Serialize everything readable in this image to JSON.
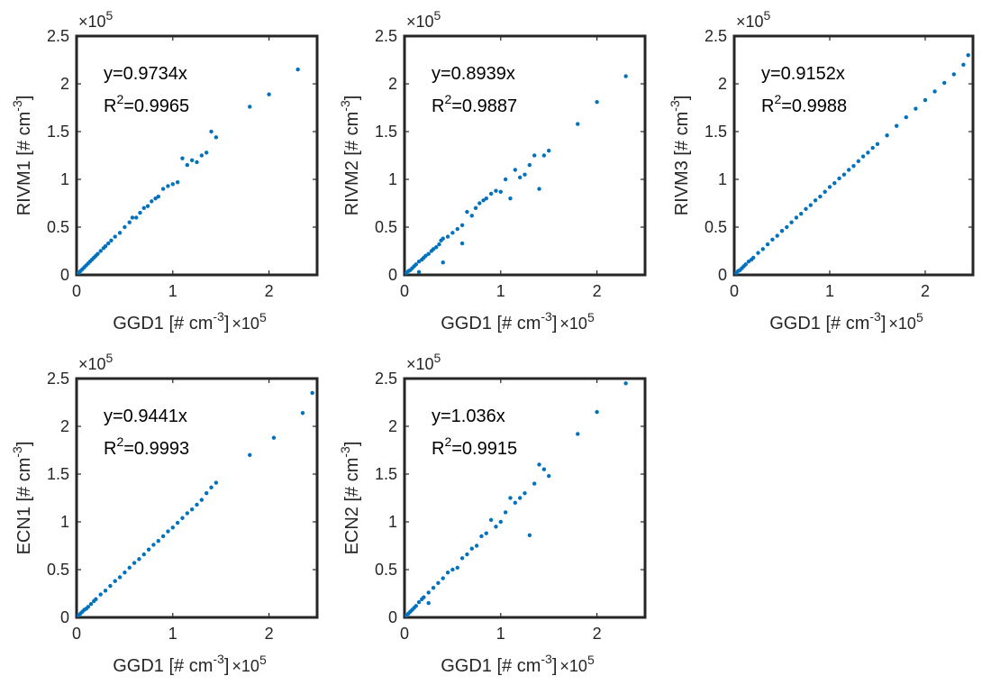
{
  "chart_data": [
    {
      "type": "scatter",
      "xlabel": "GGD1 [# cm-3]",
      "ylabel": "RIVM1 [# cm-3]",
      "x_exponent": "×10⁵",
      "y_exponent": "×10⁵",
      "xlim": [
        0,
        2.5
      ],
      "ylim": [
        0,
        2.5
      ],
      "xticks": [
        "0",
        "1",
        "2"
      ],
      "yticks": [
        "0",
        "0.5",
        "1",
        "1.5",
        "2",
        "2.5"
      ],
      "annotation": {
        "equation": "y=0.9734x",
        "r2": "R²=0.9965"
      },
      "marker_color": "#0072BD",
      "series": [
        {
          "x": [
            0.02,
            0.04,
            0.06,
            0.08,
            0.1,
            0.12,
            0.14,
            0.16,
            0.18,
            0.2,
            0.22,
            0.25,
            0.28,
            0.3,
            0.33,
            0.36,
            0.4,
            0.45,
            0.5,
            0.55,
            0.58,
            0.62,
            0.66,
            0.7,
            0.74,
            0.78,
            0.82,
            0.85,
            0.9,
            0.95,
            1.0,
            1.05,
            1.1,
            1.15,
            1.2,
            1.25,
            1.3,
            1.35,
            1.4,
            1.45,
            1.8,
            2.0,
            2.3
          ],
          "y": [
            0.02,
            0.04,
            0.06,
            0.08,
            0.1,
            0.12,
            0.14,
            0.16,
            0.18,
            0.2,
            0.22,
            0.25,
            0.28,
            0.3,
            0.33,
            0.36,
            0.4,
            0.44,
            0.5,
            0.55,
            0.6,
            0.6,
            0.65,
            0.7,
            0.72,
            0.77,
            0.8,
            0.82,
            0.9,
            0.93,
            0.95,
            0.97,
            1.22,
            1.15,
            1.2,
            1.18,
            1.25,
            1.28,
            1.5,
            1.44,
            1.76,
            1.89,
            2.15
          ]
        }
      ]
    },
    {
      "type": "scatter",
      "xlabel": "GGD1 [# cm-3]",
      "ylabel": "RIVM2 [# cm-3]",
      "x_exponent": "×10⁵",
      "y_exponent": "×10⁵",
      "xlim": [
        0,
        2.5
      ],
      "ylim": [
        0,
        2.5
      ],
      "xticks": [
        "0",
        "1",
        "2"
      ],
      "yticks": [
        "0",
        "0.5",
        "1",
        "1.5",
        "2",
        "2.5"
      ],
      "annotation": {
        "equation": "y=0.8939x",
        "r2": "R²=0.9887"
      },
      "marker_color": "#0072BD",
      "series": [
        {
          "x": [
            0.02,
            0.04,
            0.06,
            0.08,
            0.1,
            0.12,
            0.15,
            0.18,
            0.2,
            0.22,
            0.25,
            0.28,
            0.3,
            0.33,
            0.36,
            0.38,
            0.4,
            0.45,
            0.5,
            0.55,
            0.6,
            0.65,
            0.7,
            0.74,
            0.78,
            0.82,
            0.85,
            0.9,
            0.95,
            1.0,
            1.05,
            1.1,
            1.15,
            1.2,
            1.25,
            1.3,
            1.35,
            1.4,
            1.45,
            1.5,
            1.8,
            2.0,
            2.3,
            0.15,
            0.4,
            0.6
          ],
          "y": [
            0.02,
            0.04,
            0.05,
            0.07,
            0.09,
            0.11,
            0.14,
            0.16,
            0.18,
            0.2,
            0.22,
            0.25,
            0.27,
            0.29,
            0.32,
            0.36,
            0.38,
            0.4,
            0.44,
            0.48,
            0.52,
            0.66,
            0.62,
            0.7,
            0.75,
            0.78,
            0.8,
            0.85,
            0.88,
            0.87,
            1.0,
            0.8,
            1.1,
            1.02,
            1.05,
            1.15,
            1.25,
            0.9,
            1.25,
            1.3,
            1.58,
            1.81,
            2.08,
            0.03,
            0.13,
            0.33
          ]
        }
      ]
    },
    {
      "type": "scatter",
      "xlabel": "GGD1 [# cm-3]",
      "ylabel": "RIVM3 [# cm-3]",
      "x_exponent": "×10⁵",
      "y_exponent": "×10⁵",
      "xlim": [
        0,
        2.5
      ],
      "ylim": [
        0,
        2.5
      ],
      "xticks": [
        "0",
        "1",
        "2"
      ],
      "yticks": [
        "0",
        "0.5",
        "1",
        "1.5",
        "2",
        "2.5"
      ],
      "annotation": {
        "equation": "y=0.9152x",
        "r2": "R²=0.9988"
      },
      "marker_color": "#0072BD",
      "series": [
        {
          "x": [
            0.02,
            0.04,
            0.06,
            0.08,
            0.1,
            0.12,
            0.15,
            0.18,
            0.2,
            0.25,
            0.3,
            0.35,
            0.4,
            0.45,
            0.5,
            0.55,
            0.6,
            0.65,
            0.7,
            0.75,
            0.8,
            0.85,
            0.9,
            0.95,
            1.0,
            1.05,
            1.1,
            1.15,
            1.2,
            1.25,
            1.3,
            1.35,
            1.4,
            1.45,
            1.5,
            1.6,
            1.7,
            1.8,
            1.9,
            2.0,
            2.1,
            2.2,
            2.3,
            2.4,
            2.45
          ],
          "y": [
            0.02,
            0.04,
            0.05,
            0.07,
            0.09,
            0.11,
            0.14,
            0.16,
            0.18,
            0.23,
            0.27,
            0.32,
            0.37,
            0.41,
            0.46,
            0.5,
            0.55,
            0.6,
            0.64,
            0.69,
            0.73,
            0.78,
            0.82,
            0.87,
            0.92,
            0.96,
            1.01,
            1.05,
            1.1,
            1.14,
            1.19,
            1.24,
            1.28,
            1.33,
            1.37,
            1.46,
            1.56,
            1.65,
            1.74,
            1.83,
            1.92,
            2.01,
            2.1,
            2.2,
            2.3
          ]
        }
      ]
    },
    {
      "type": "scatter",
      "xlabel": "GGD1 [# cm-3]",
      "ylabel": "ECN1 [# cm-3]",
      "x_exponent": "×10⁵",
      "y_exponent": "×10⁵",
      "xlim": [
        0,
        2.5
      ],
      "ylim": [
        0,
        2.5
      ],
      "xticks": [
        "0",
        "1",
        "2"
      ],
      "yticks": [
        "0",
        "0.5",
        "1",
        "1.5",
        "2",
        "2.5"
      ],
      "annotation": {
        "equation": "y=0.9441x",
        "r2": "R²=0.9993"
      },
      "marker_color": "#0072BD",
      "series": [
        {
          "x": [
            0.02,
            0.04,
            0.06,
            0.08,
            0.1,
            0.12,
            0.15,
            0.18,
            0.2,
            0.25,
            0.3,
            0.35,
            0.4,
            0.45,
            0.5,
            0.55,
            0.6,
            0.65,
            0.7,
            0.75,
            0.8,
            0.85,
            0.9,
            0.95,
            1.0,
            1.05,
            1.1,
            1.15,
            1.2,
            1.25,
            1.3,
            1.35,
            1.4,
            1.45,
            1.8,
            2.05,
            2.35,
            2.45
          ],
          "y": [
            0.02,
            0.04,
            0.06,
            0.08,
            0.09,
            0.11,
            0.14,
            0.17,
            0.19,
            0.24,
            0.28,
            0.33,
            0.38,
            0.42,
            0.47,
            0.52,
            0.57,
            0.61,
            0.66,
            0.71,
            0.76,
            0.8,
            0.85,
            0.9,
            0.94,
            0.99,
            1.04,
            1.09,
            1.13,
            1.18,
            1.23,
            1.3,
            1.36,
            1.41,
            1.7,
            1.88,
            2.14,
            2.35
          ]
        }
      ]
    },
    {
      "type": "scatter",
      "xlabel": "GGD1 [# cm-3]",
      "ylabel": "ECN2 [# cm-3]",
      "x_exponent": "×10⁵",
      "y_exponent": "×10⁵",
      "xlim": [
        0,
        2.5
      ],
      "ylim": [
        0,
        2.5
      ],
      "xticks": [
        "0",
        "1",
        "2"
      ],
      "yticks": [
        "0",
        "0.5",
        "1",
        "1.5",
        "2",
        "2.5"
      ],
      "annotation": {
        "equation": "y=1.036x",
        "r2": "R²=0.9915"
      },
      "marker_color": "#0072BD",
      "series": [
        {
          "x": [
            0.02,
            0.04,
            0.06,
            0.08,
            0.1,
            0.12,
            0.15,
            0.18,
            0.2,
            0.25,
            0.3,
            0.35,
            0.4,
            0.45,
            0.5,
            0.55,
            0.6,
            0.65,
            0.7,
            0.75,
            0.8,
            0.85,
            0.9,
            0.95,
            1.0,
            1.05,
            1.1,
            1.15,
            1.2,
            1.25,
            1.3,
            1.35,
            1.4,
            1.45,
            1.5,
            1.8,
            2.0,
            2.3,
            0.25
          ],
          "y": [
            0.02,
            0.04,
            0.06,
            0.08,
            0.1,
            0.12,
            0.16,
            0.19,
            0.21,
            0.26,
            0.31,
            0.36,
            0.41,
            0.47,
            0.5,
            0.52,
            0.62,
            0.66,
            0.72,
            0.75,
            0.85,
            0.88,
            1.02,
            0.95,
            1.0,
            1.1,
            1.25,
            1.2,
            1.25,
            1.3,
            0.86,
            1.4,
            1.6,
            1.55,
            1.48,
            1.92,
            2.15,
            2.45,
            0.15
          ]
        }
      ]
    }
  ]
}
